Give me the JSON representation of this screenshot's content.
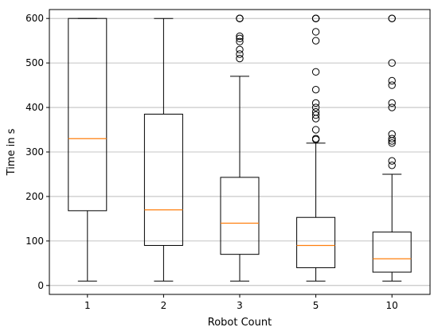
{
  "chart_data": {
    "type": "box",
    "title": "",
    "xlabel": "Robot Count",
    "ylabel": "Time in s",
    "ylim": [
      -20,
      620
    ],
    "yticks": [
      0,
      100,
      200,
      300,
      400,
      500,
      600
    ],
    "grid": "y-major",
    "colors": {
      "box": "#000000",
      "median": "#ff7f0e",
      "grid": "#b0b0b0"
    },
    "categories": [
      "1",
      "2",
      "3",
      "5",
      "10"
    ],
    "boxes": [
      {
        "label": "1",
        "whislo": 10,
        "q1": 168,
        "median": 330,
        "q3": 600,
        "whishi": 600,
        "fliers": []
      },
      {
        "label": "2",
        "whislo": 10,
        "q1": 90,
        "median": 170,
        "q3": 385,
        "whishi": 600,
        "fliers": []
      },
      {
        "label": "3",
        "whislo": 10,
        "q1": 70,
        "median": 140,
        "q3": 243,
        "whishi": 470,
        "fliers": [
          510,
          520,
          530,
          548,
          555,
          560,
          600,
          600,
          600
        ]
      },
      {
        "label": "5",
        "whislo": 10,
        "q1": 40,
        "median": 90,
        "q3": 153,
        "whishi": 320,
        "fliers": [
          328,
          330,
          350,
          375,
          383,
          390,
          400,
          410,
          440,
          480,
          550,
          570,
          600,
          600,
          600
        ]
      },
      {
        "label": "10",
        "whislo": 10,
        "q1": 30,
        "median": 60,
        "q3": 120,
        "whishi": 250,
        "fliers": [
          270,
          280,
          320,
          325,
          330,
          340,
          400,
          410,
          450,
          460,
          500,
          600,
          600
        ]
      }
    ]
  }
}
